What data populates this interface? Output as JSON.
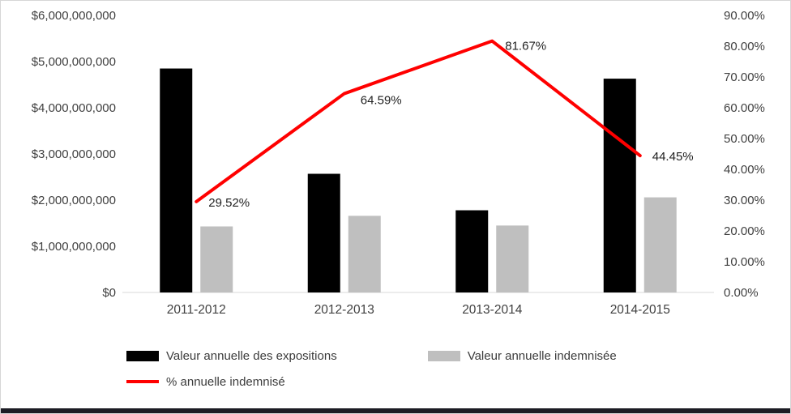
{
  "chart_data": {
    "type": "combo",
    "title": "",
    "categories": [
      "2011-2012",
      "2012-2013",
      "2013-2014",
      "2014-2015"
    ],
    "series": [
      {
        "name": "Valeur annuelle des expositions",
        "type": "bar",
        "axis": "left",
        "color": "#000000",
        "values": [
          4850000000,
          2570000000,
          1780000000,
          4630000000
        ]
      },
      {
        "name": "Valeur annuelle indemnisée",
        "type": "bar",
        "axis": "left",
        "color": "#bfbfbf",
        "values": [
          1430000000,
          1660000000,
          1450000000,
          2060000000
        ]
      },
      {
        "name": "% annuelle indemnisé",
        "type": "line",
        "axis": "right",
        "color": "#ff0000",
        "values": [
          29.52,
          64.59,
          81.67,
          44.45
        ],
        "labels": [
          "29.52%",
          "64.59%",
          "81.67%",
          "44.45%"
        ]
      }
    ],
    "left_axis": {
      "min": 0,
      "max": 6000000000,
      "ticks": [
        "$0",
        "$1,000,000,000",
        "$2,000,000,000",
        "$3,000,000,000",
        "$4,000,000,000",
        "$5,000,000,000",
        "$6,000,000,000"
      ]
    },
    "right_axis": {
      "min": 0,
      "max": 90,
      "ticks": [
        "0.00%",
        "10.00%",
        "20.00%",
        "30.00%",
        "40.00%",
        "50.00%",
        "60.00%",
        "70.00%",
        "80.00%",
        "90.00%"
      ]
    },
    "grid": false,
    "legend_position": "bottom"
  }
}
